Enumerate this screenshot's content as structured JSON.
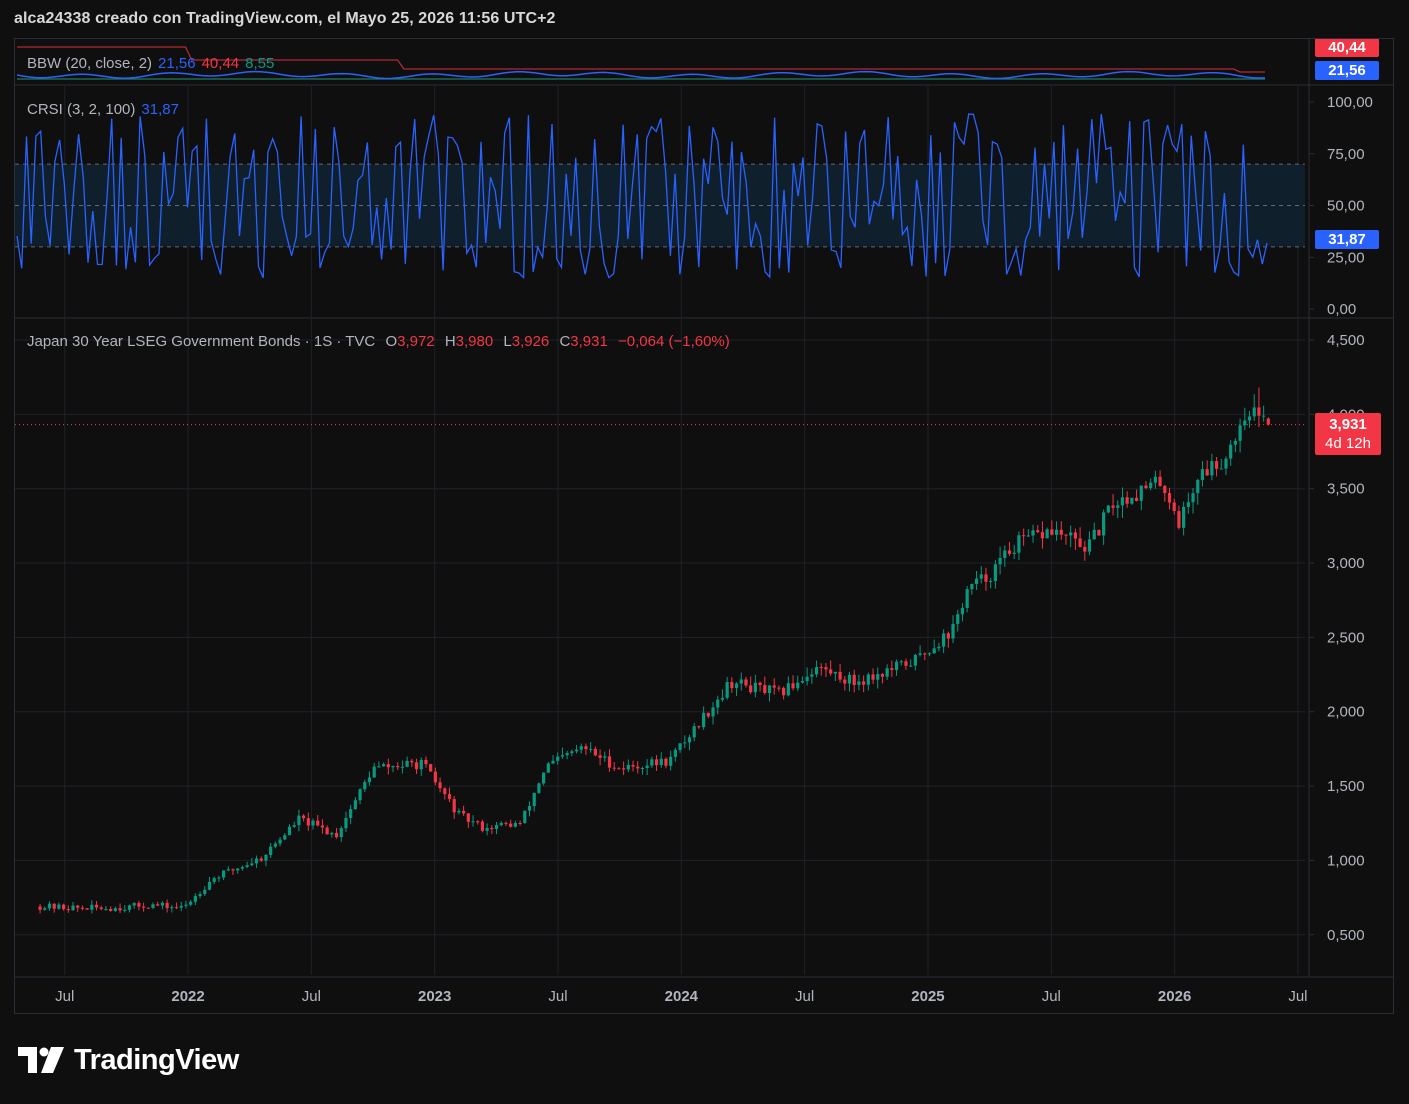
{
  "header": {
    "caption": "alca24338 creado con TradingView.com, el Mayo 25, 2026 11:56 UTC+2"
  },
  "brand": {
    "name": "TradingView"
  },
  "colors": {
    "up": "#089981",
    "down": "#f23645",
    "blue": "#2962ff",
    "bg": "#0f0f0f",
    "grid": "#1f2229"
  },
  "bbw": {
    "label": "BBW (20, close, 2)",
    "value1": "21,56",
    "value2": "40,44",
    "value3": "8,55",
    "badge_upper": "40,44",
    "badge_lower": "21,56"
  },
  "crsi": {
    "label": "CRSI (3, 2, 100)",
    "value": "31,87",
    "badge": "31,87",
    "ticks": [
      "100,00",
      "75,00",
      "50,00",
      "25,00",
      "0,00"
    ]
  },
  "price": {
    "title": "Japan 30 Year LSEG Government Bonds · 1S · TVC",
    "o_label": "O",
    "o": "3,972",
    "h_label": "H",
    "h": "3,980",
    "l_label": "L",
    "l": "3,926",
    "c_label": "C",
    "c": "3,931",
    "change": "−0,064 (−1,60%)",
    "last_badge": "3,931",
    "countdown": "4d 12h",
    "ticks": [
      "4,500",
      "4,000",
      "3,500",
      "3,000",
      "2,500",
      "2,000",
      "1,500",
      "1,000",
      "0,500"
    ]
  },
  "x_axis": {
    "labels": [
      "Jul",
      "2022",
      "Jul",
      "2023",
      "Jul",
      "2024",
      "Jul",
      "2025",
      "Jul",
      "2026",
      "Jul"
    ]
  },
  "chart_data": [
    {
      "type": "line",
      "title": "BBW (20, close, 2)",
      "series": [
        {
          "values": [
            21.56
          ]
        },
        {
          "values": [
            40.44
          ]
        },
        {
          "values": [
            8.55
          ]
        }
      ]
    },
    {
      "type": "line",
      "title": "CRSI (3, 2, 100)",
      "ylim": [
        0,
        100
      ],
      "bands": [
        30,
        50,
        70
      ],
      "series": [
        {
          "values": [
            31.87
          ]
        }
      ]
    },
    {
      "type": "candlestick",
      "title": "Japan 30 Year LSEG Government Bonds · 1S · TVC",
      "x_range": [
        "2021-06",
        "2026-07"
      ],
      "ylim": [
        0.3,
        4.5
      ],
      "series": [
        {
          "anchors_x": [
            2021.4,
            2021.55,
            2021.7,
            2021.85,
            2021.98,
            2022.1,
            2022.3,
            2022.45,
            2022.6,
            2022.75,
            2022.95,
            2023.1,
            2023.2,
            2023.35,
            2023.45,
            2023.6,
            2023.75,
            2023.95,
            2024.05,
            2024.2,
            2024.4,
            2024.55,
            2024.7,
            2024.85,
            2024.95,
            2025.1,
            2025.16,
            2025.25,
            2025.35,
            2025.5,
            2025.65,
            2025.75,
            2025.95,
            2026.02,
            2026.1,
            2026.2,
            2026.3,
            2026.34,
            2026.38
          ],
          "anchors_y": [
            0.69,
            0.68,
            0.68,
            0.7,
            0.68,
            0.88,
            1.02,
            1.28,
            1.17,
            1.62,
            1.65,
            1.3,
            1.22,
            1.25,
            1.63,
            1.76,
            1.62,
            1.67,
            1.88,
            2.2,
            2.12,
            2.3,
            2.2,
            2.28,
            2.35,
            2.55,
            2.82,
            2.92,
            3.12,
            3.22,
            3.1,
            3.4,
            3.55,
            3.27,
            3.6,
            3.7,
            4.05,
            3.972,
            3.931
          ],
          "last": {
            "open": 3.972,
            "high": 3.98,
            "low": 3.926,
            "close": 3.931
          }
        }
      ]
    }
  ]
}
